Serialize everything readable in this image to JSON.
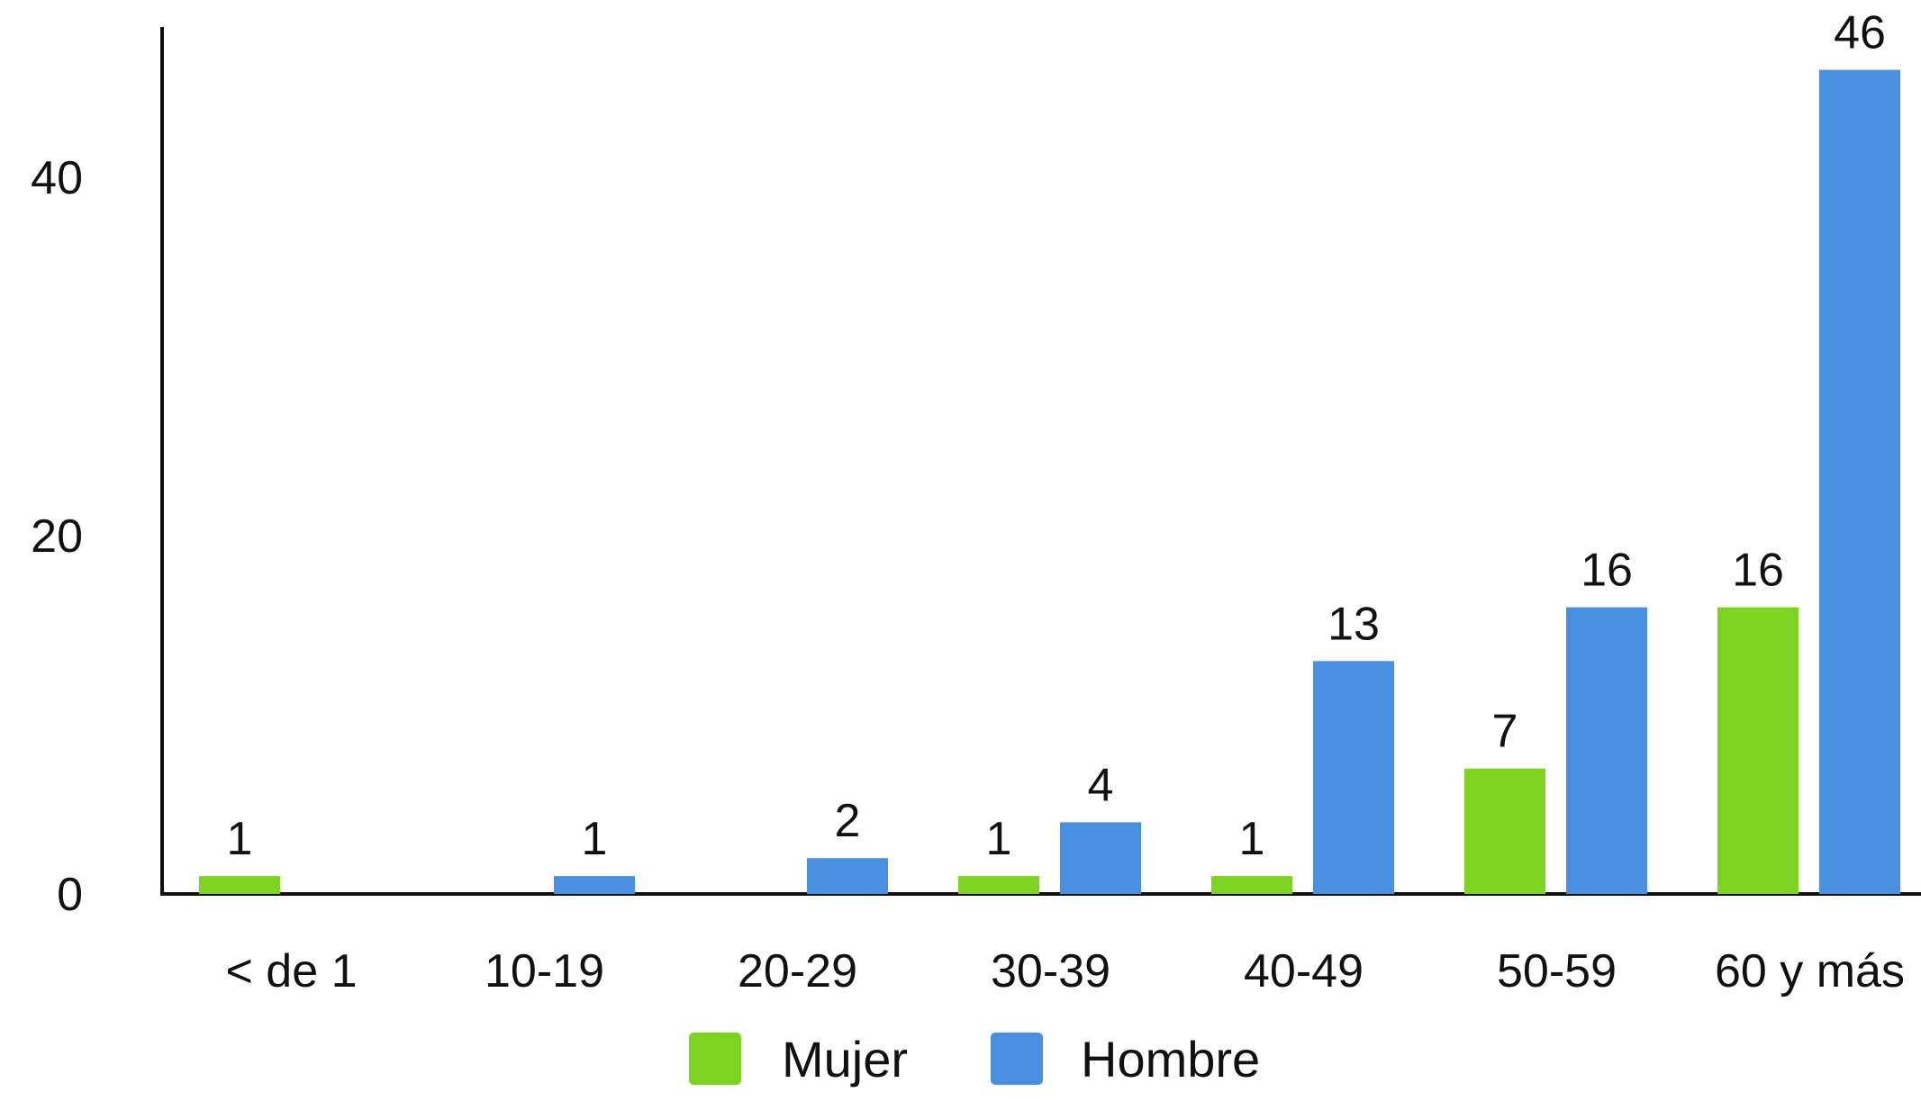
{
  "chart_data": {
    "type": "bar",
    "title": "",
    "xlabel": "",
    "ylabel": "",
    "categories": [
      "< de 1",
      "10-19",
      "20-29",
      "30-39",
      "40-49",
      "50-59",
      "60 y más"
    ],
    "series": [
      {
        "name": "Mujer",
        "color": "#7ed321",
        "values": [
          1,
          null,
          null,
          1,
          1,
          7,
          16
        ]
      },
      {
        "name": "Hombre",
        "color": "#4a90e2",
        "values": [
          null,
          1,
          2,
          4,
          13,
          16,
          46
        ]
      }
    ],
    "ylim": [
      0,
      48
    ],
    "yticks": [
      0,
      20,
      40
    ],
    "grid": false,
    "legend_position": "bottom"
  }
}
